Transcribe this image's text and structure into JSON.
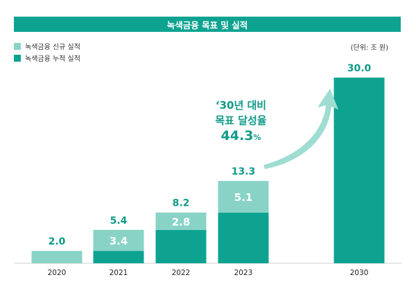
{
  "colors": {
    "new": "#88d3c6",
    "cumulative": "#0ea391",
    "accent": "#0f9a88",
    "banner": "#0ea391"
  },
  "legend": {
    "new": "녹색금융 신규 실적",
    "cumulative": "녹색금융 누적 실적"
  },
  "unit_note": "(단위: 조 원)",
  "callout": {
    "line1": "‘30년 대비",
    "line2": "목표 달성율",
    "rate": "44.3",
    "pct": "%"
  },
  "chart_data": {
    "type": "bar",
    "stacked": true,
    "title": "녹색금융 목표 및 실적",
    "categories": [
      "2020",
      "2021",
      "2022",
      "2023",
      "2030"
    ],
    "series": [
      {
        "name": "녹색금융 누적 실적",
        "values": [
          0,
          2.0,
          5.4,
          8.2,
          30.0
        ]
      },
      {
        "name": "녹색금융 신규 실적",
        "values": [
          2.0,
          3.4,
          2.8,
          5.1,
          0
        ]
      }
    ],
    "totals": [
      "2.0",
      "5.4",
      "8.2",
      "13.3",
      "30.0"
    ],
    "new_labels": [
      "",
      "3.4",
      "2.8",
      "5.1",
      ""
    ],
    "ylim": [
      0,
      30
    ],
    "grid": false,
    "legend_position": "top-left"
  }
}
